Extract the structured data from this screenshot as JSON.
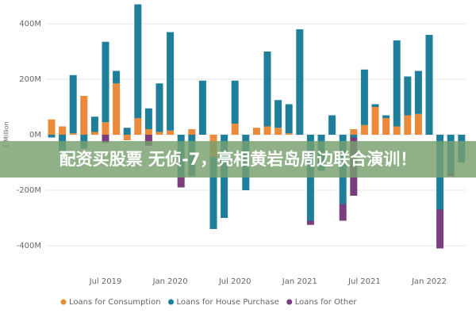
{
  "chart_data": {
    "type": "stacked-bar",
    "ylabel": "£ Million",
    "categories": [
      null,
      null,
      null,
      null,
      null,
      "Jul 2019",
      null,
      null,
      null,
      null,
      null,
      "Jan 2020",
      null,
      null,
      null,
      null,
      null,
      "Jul 2020",
      null,
      null,
      null,
      null,
      null,
      "Jan 2021",
      null,
      null,
      null,
      null,
      null,
      "Jul 2021",
      null,
      null,
      null,
      null,
      null,
      "Jan 2022",
      null,
      null,
      null
    ],
    "series": [
      {
        "name": "Loans for Consumption",
        "color": "#ea8a3a",
        "values": [
          55,
          30,
          5,
          140,
          10,
          45,
          185,
          -20,
          60,
          20,
          10,
          15,
          0,
          20,
          0,
          -80,
          0,
          40,
          0,
          25,
          30,
          25,
          5,
          0,
          0,
          0,
          0,
          0,
          20,
          35,
          100,
          60,
          30,
          70,
          75,
          0,
          0,
          0,
          0
        ]
      },
      {
        "name": "Loans for House Purchase",
        "color": "#1f7f9a",
        "values": [
          -10,
          -60,
          210,
          -50,
          55,
          290,
          45,
          25,
          410,
          75,
          175,
          355,
          -150,
          -150,
          195,
          -260,
          -300,
          155,
          -200,
          0,
          270,
          100,
          105,
          380,
          -310,
          -130,
          70,
          -250,
          -10,
          200,
          10,
          10,
          310,
          140,
          155,
          360,
          -270,
          -140,
          -100
        ]
      },
      {
        "name": "Loans for Other",
        "color": "#7a3e7e",
        "values": [
          0,
          0,
          0,
          0,
          0,
          -30,
          0,
          0,
          0,
          -40,
          0,
          0,
          -40,
          0,
          0,
          0,
          0,
          0,
          0,
          0,
          0,
          0,
          0,
          0,
          -15,
          0,
          0,
          -60,
          -210,
          0,
          0,
          0,
          0,
          0,
          0,
          0,
          -140,
          -10,
          0
        ]
      }
    ],
    "ylim": [
      -470,
      470
    ],
    "yticks": [
      {
        "value": -400,
        "label": "-400M"
      },
      {
        "value": -200,
        "label": "-200M"
      },
      {
        "value": 0,
        "label": "0M"
      },
      {
        "value": 200,
        "label": "200M"
      },
      {
        "value": 400,
        "label": "400M"
      }
    ],
    "grid": true
  },
  "banner": {
    "text": "配资买股票 无侦-7，亮相黄岩岛周边联合演训！"
  }
}
